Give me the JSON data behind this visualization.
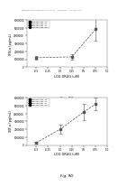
{
  "header_text": "Human Applications Randomization     May 11, 2011     Sheet 13 of 37     US 2011/0014412 A1",
  "fig_c": {
    "title": "Fig. 9C",
    "xlabel": "LOG DRUG (uM)",
    "ylabel": "IFN-a (pg/mL)",
    "xlim": [
      -0.7,
      1.0
    ],
    "ylim": [
      0,
      6000000
    ],
    "ytick_vals": [
      0,
      1000000,
      2000000,
      3000000,
      4000000,
      5000000,
      6000000
    ],
    "ytick_labels": [
      "0",
      "1000000",
      "2000000",
      "3000000",
      "4000000",
      "5000000",
      "6000000"
    ],
    "xtick_vals": [
      -0.5,
      -0.25,
      0.0,
      0.25,
      0.5,
      0.75,
      1.0
    ],
    "xtick_labels": [
      "-0.5",
      "-0.25",
      "0.0",
      "0.25",
      "0.5",
      "0.75",
      "1.0"
    ],
    "series": [
      {
        "label": "2012-NV-001-1A",
        "x": [
          -0.5,
          0.25,
          0.75
        ],
        "y": [
          1200000,
          1300000,
          4800000
        ],
        "yerr": [
          250000,
          350000,
          1400000
        ],
        "marker": "s"
      },
      {
        "label": "2012-NV-001-2A",
        "x": [
          -0.5,
          0.25,
          0.75
        ],
        "y": [
          1200000,
          1300000,
          4800000
        ],
        "yerr": [
          250000,
          350000,
          1400000
        ],
        "marker": "^"
      },
      {
        "label": "2012-NV-001-3A",
        "x": [
          -0.5,
          0.25,
          0.75
        ],
        "y": [
          1200000,
          1300000,
          4800000
        ],
        "yerr": [
          250000,
          350000,
          1400000
        ],
        "marker": "D"
      },
      {
        "label": "2012-NV-001-OTY",
        "x": [
          -0.5,
          0.25,
          0.75
        ],
        "y": [
          1200000,
          1300000,
          4800000
        ],
        "yerr": [
          250000,
          350000,
          1400000
        ],
        "marker": "o"
      }
    ]
  },
  "fig_d": {
    "title": "Fig. 9D",
    "xlabel": "LOG DRUG (uM)",
    "ylabel": "TNF-a (pg/mL)",
    "xlim": [
      -0.7,
      1.0
    ],
    "ylim": [
      0,
      6000000
    ],
    "ytick_vals": [
      0,
      1000000,
      2000000,
      3000000,
      4000000,
      5000000,
      6000000
    ],
    "ytick_labels": [
      "0",
      "1000000",
      "2000000",
      "3000000",
      "4000000",
      "5000000",
      "6000000"
    ],
    "xtick_vals": [
      -0.5,
      -0.25,
      0.0,
      0.25,
      0.5,
      0.75,
      1.0
    ],
    "xtick_labels": [
      "-0.5",
      "-0.25",
      "0.0",
      "0.25",
      "0.5",
      "0.75",
      "1.0"
    ],
    "series": [
      {
        "label": "2012-NV-001-1A",
        "x": [
          -0.5,
          -0.0,
          0.5,
          0.75
        ],
        "y": [
          300000,
          2000000,
          4200000,
          5200000
        ],
        "yerr": [
          150000,
          600000,
          1000000,
          800000
        ],
        "marker": "s"
      },
      {
        "label": "2012-NV-001-2A",
        "x": [
          -0.5,
          -0.0,
          0.5,
          0.75
        ],
        "y": [
          300000,
          2000000,
          4200000,
          5200000
        ],
        "yerr": [
          150000,
          600000,
          1000000,
          800000
        ],
        "marker": "^"
      },
      {
        "label": "2012-NV-001-3A",
        "x": [
          -0.5,
          -0.0,
          0.5,
          0.75
        ],
        "y": [
          300000,
          2000000,
          4200000,
          5200000
        ],
        "yerr": [
          150000,
          600000,
          1000000,
          800000
        ],
        "marker": "D"
      },
      {
        "label": "2012-NV-001-OTY",
        "x": [
          -0.5,
          -0.0,
          0.5,
          0.75
        ],
        "y": [
          300000,
          2000000,
          4200000,
          5200000
        ],
        "yerr": [
          150000,
          600000,
          1000000,
          800000
        ],
        "marker": "o"
      }
    ]
  },
  "line_color": "#555555",
  "marker_color": "#000000",
  "background_color": "#ffffff"
}
